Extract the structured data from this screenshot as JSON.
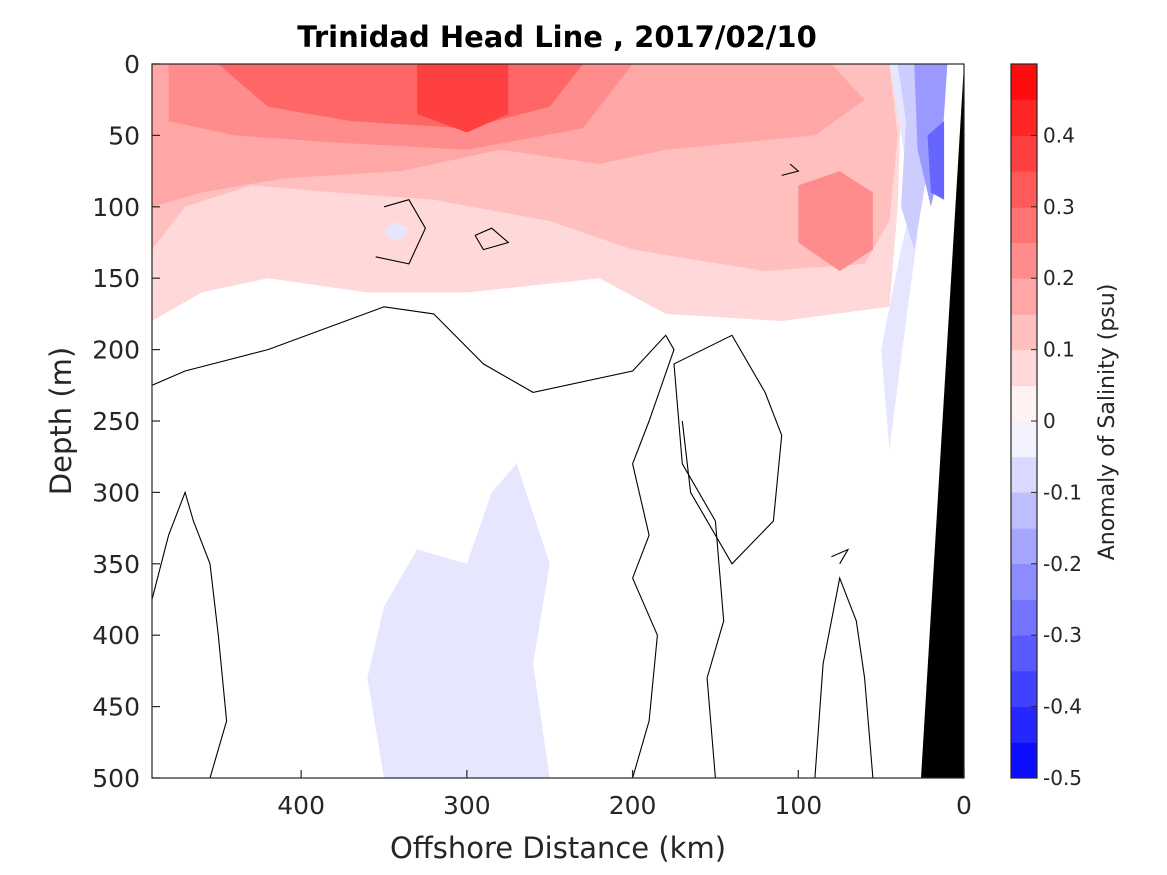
{
  "chart_data": {
    "type": "heatmap",
    "subtype": "filled-contour section",
    "title": "Trinidad Head Line , 2017/02/10",
    "xlabel": "Offshore Distance (km)",
    "ylabel": "Depth (m)",
    "colorbar_label": "Anomaly of Salinity (psu)",
    "xlim": [
      490,
      0
    ],
    "ylim": [
      500,
      0
    ],
    "x_reversed": true,
    "y_reversed": true,
    "x_ticks": [
      400,
      300,
      200,
      100,
      0
    ],
    "y_ticks": [
      0,
      50,
      100,
      150,
      200,
      250,
      300,
      350,
      400,
      450,
      500
    ],
    "colorbar": {
      "range": [
        -0.5,
        0.5
      ],
      "step": 0.05,
      "tick_values": [
        0.4,
        0.3,
        0.2,
        0.1,
        0,
        -0.1,
        -0.2,
        -0.3,
        -0.4,
        -0.5
      ],
      "tick_labels": [
        "0.4",
        "0.3",
        "0.2",
        "0.1",
        "0",
        "-0.1",
        "-0.2",
        "-0.3",
        "-0.4",
        "-0.5"
      ],
      "colormap": "blue-white-red"
    },
    "contour_levels_drawn": [
      0
    ],
    "features": [
      {
        "name": "surface positive anomaly",
        "depth_range": [
          0,
          180
        ],
        "x_range": [
          490,
          40
        ],
        "max_value": 0.4,
        "max_location": {
          "x": 300,
          "depth": 30
        }
      },
      {
        "name": "nearshore negative anomaly",
        "depth_range": [
          0,
          270
        ],
        "x_range": [
          45,
          0
        ],
        "min_value": -0.35,
        "min_location": {
          "x": 15,
          "depth": 80
        }
      },
      {
        "name": "deep negative anomaly",
        "depth_range": [
          280,
          500
        ],
        "x_range": [
          360,
          250
        ],
        "value": -0.05
      },
      {
        "name": "secondary positive core",
        "depth_range": [
          80,
          140
        ],
        "x_range": [
          100,
          50
        ],
        "value": 0.25
      }
    ],
    "bathymetry_mask": "black",
    "grid": false
  },
  "colors": {
    "bathymetry": "#000000",
    "contour_line": "#000000",
    "red_max": "#ff0000",
    "blue_max": "#0000ff"
  }
}
